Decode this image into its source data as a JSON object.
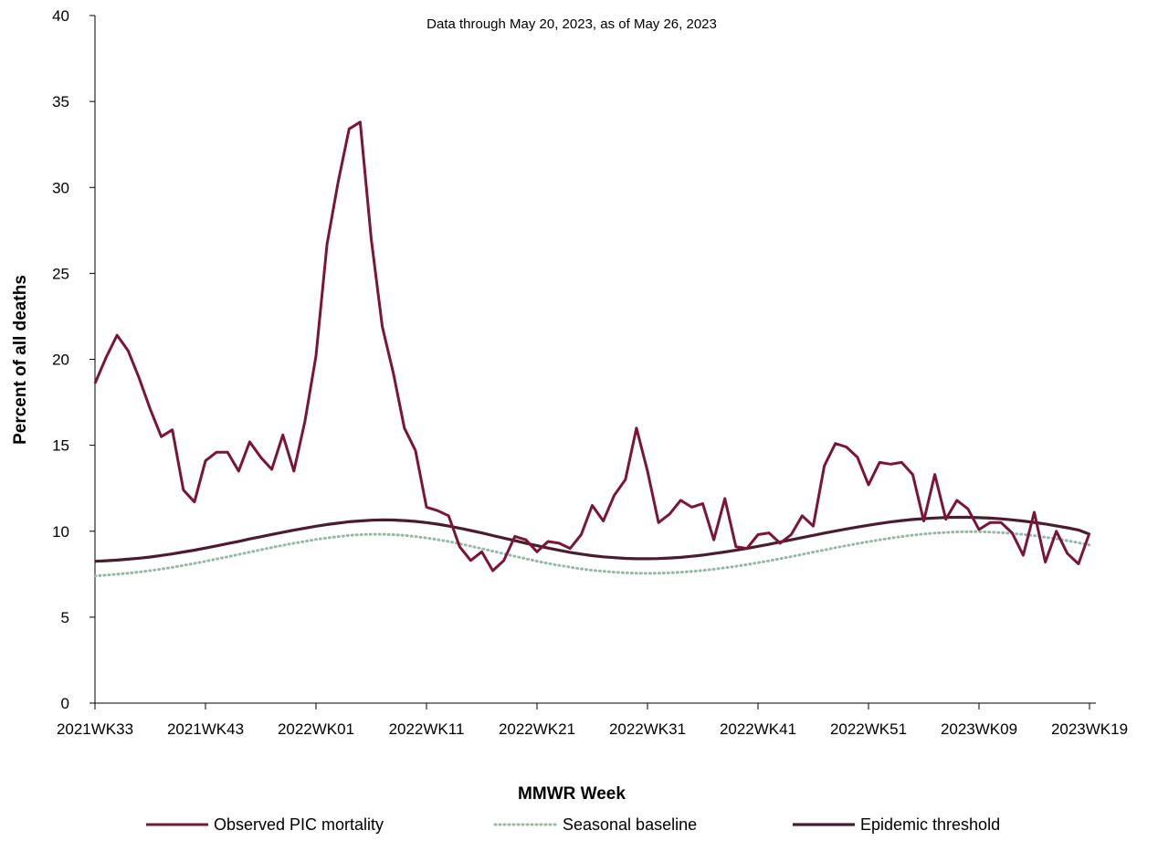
{
  "chart_data": {
    "type": "line",
    "subtitle": "Data through May 20, 2023, as of May 26, 2023",
    "xlabel": "MMWR Week",
    "ylabel": "Percent of all deaths",
    "ylim": [
      0,
      40
    ],
    "yticks": [
      0,
      5,
      10,
      15,
      20,
      25,
      30,
      35,
      40
    ],
    "xticks": [
      {
        "label": "2021WK33",
        "index": 0
      },
      {
        "label": "2021WK43",
        "index": 10
      },
      {
        "label": "2022WK01",
        "index": 20
      },
      {
        "label": "2022WK11",
        "index": 30
      },
      {
        "label": "2022WK21",
        "index": 40
      },
      {
        "label": "2022WK31",
        "index": 50
      },
      {
        "label": "2022WK41",
        "index": 60
      },
      {
        "label": "2022WK51",
        "index": 70
      },
      {
        "label": "2023WK09",
        "index": 80
      },
      {
        "label": "2023WK19",
        "index": 90
      }
    ],
    "grid": false,
    "legend_position": "bottom",
    "series": [
      {
        "name": "Observed PIC mortality",
        "color": "#7b1538",
        "style": "solid",
        "values": [
          18.6,
          20.1,
          21.4,
          20.5,
          18.9,
          17.1,
          15.5,
          15.9,
          12.4,
          11.7,
          14.1,
          14.6,
          14.6,
          13.5,
          15.2,
          14.3,
          13.6,
          15.6,
          13.5,
          16.4,
          20.2,
          26.7,
          30.3,
          33.4,
          33.8,
          27.0,
          21.9,
          19.2,
          16.0,
          14.7,
          11.4,
          11.2,
          10.9,
          9.1,
          8.3,
          8.8,
          7.7,
          8.3,
          9.7,
          9.5,
          8.8,
          9.4,
          9.3,
          9.0,
          9.8,
          11.5,
          10.6,
          12.1,
          13.0,
          16.0,
          13.5,
          10.5,
          11.0,
          11.8,
          11.4,
          11.6,
          9.5,
          11.9,
          9.1,
          9.0,
          9.8,
          9.9,
          9.3,
          9.8,
          10.9,
          10.3,
          13.8,
          15.1,
          14.9,
          14.3,
          12.7,
          14.0,
          13.9,
          14.0,
          13.3,
          10.6,
          13.3,
          10.7,
          11.8,
          11.3,
          10.1,
          10.5,
          10.5,
          9.9,
          8.6,
          11.1,
          8.2,
          10.0,
          8.7,
          8.1,
          9.9
        ]
      },
      {
        "name": "Seasonal baseline",
        "color": "#93b8a5",
        "style": "dotted",
        "values": [
          7.4,
          7.45,
          7.5,
          7.56,
          7.63,
          7.71,
          7.8,
          7.9,
          8.01,
          8.13,
          8.25,
          8.38,
          8.51,
          8.65,
          8.78,
          8.92,
          9.05,
          9.18,
          9.3,
          9.41,
          9.52,
          9.61,
          9.69,
          9.76,
          9.8,
          9.82,
          9.82,
          9.8,
          9.76,
          9.69,
          9.61,
          9.51,
          9.4,
          9.27,
          9.13,
          8.99,
          8.84,
          8.69,
          8.54,
          8.4,
          8.26,
          8.13,
          8.01,
          7.91,
          7.81,
          7.73,
          7.67,
          7.62,
          7.58,
          7.56,
          7.55,
          7.56,
          7.58,
          7.61,
          7.66,
          7.72,
          7.79,
          7.87,
          7.96,
          8.06,
          8.17,
          8.28,
          8.4,
          8.52,
          8.65,
          8.78,
          8.91,
          9.04,
          9.16,
          9.28,
          9.39,
          9.5,
          9.6,
          9.69,
          9.77,
          9.84,
          9.89,
          9.93,
          9.96,
          9.97,
          9.97,
          9.95,
          9.92,
          9.87,
          9.81,
          9.74,
          9.65,
          9.56,
          9.45,
          9.33,
          9.2
        ]
      },
      {
        "name": "Epidemic threshold",
        "color": "#4a1c30",
        "style": "solid",
        "values": [
          8.25,
          8.28,
          8.32,
          8.37,
          8.43,
          8.5,
          8.59,
          8.68,
          8.79,
          8.9,
          9.02,
          9.15,
          9.28,
          9.41,
          9.55,
          9.68,
          9.81,
          9.94,
          10.06,
          10.18,
          10.29,
          10.39,
          10.47,
          10.55,
          10.6,
          10.64,
          10.66,
          10.65,
          10.62,
          10.57,
          10.5,
          10.41,
          10.3,
          10.18,
          10.04,
          9.9,
          9.75,
          9.6,
          9.45,
          9.3,
          9.16,
          9.02,
          8.89,
          8.77,
          8.67,
          8.58,
          8.51,
          8.46,
          8.42,
          8.4,
          8.4,
          8.41,
          8.44,
          8.48,
          8.54,
          8.61,
          8.7,
          8.79,
          8.89,
          9.0,
          9.12,
          9.24,
          9.37,
          9.5,
          9.63,
          9.76,
          9.89,
          10.01,
          10.13,
          10.24,
          10.35,
          10.45,
          10.54,
          10.62,
          10.68,
          10.73,
          10.77,
          10.8,
          10.81,
          10.81,
          10.79,
          10.76,
          10.72,
          10.66,
          10.59,
          10.51,
          10.42,
          10.31,
          10.2,
          10.07,
          9.83
        ]
      }
    ]
  }
}
